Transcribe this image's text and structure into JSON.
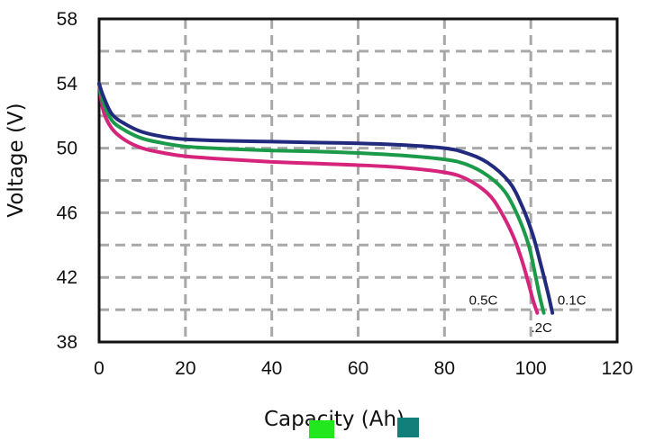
{
  "chart_data": {
    "type": "line",
    "title": "",
    "xlabel": "Capacity (Ah)",
    "ylabel": "Voltage (V)",
    "xlim": [
      0,
      120
    ],
    "ylim": [
      38,
      58
    ],
    "xticks": [
      "0",
      "20",
      "40",
      "60",
      "80",
      "100",
      "120"
    ],
    "yticks": [
      "38",
      "42",
      "46",
      "50",
      "54",
      "58"
    ],
    "grid": true,
    "legend": "none",
    "series": [
      {
        "name": "0.5C",
        "color": "#d6247d",
        "x": [
          0,
          1,
          3,
          6,
          10,
          15,
          20,
          30,
          40,
          50,
          60,
          70,
          80,
          85,
          90,
          93,
          96,
          98,
          99.5,
          100.5,
          101.5
        ],
        "y": [
          54,
          52.3,
          51.2,
          50.5,
          50.0,
          49.7,
          49.5,
          49.3,
          49.15,
          49.05,
          48.95,
          48.8,
          48.5,
          48.1,
          47.2,
          46.1,
          44.5,
          43.0,
          41.6,
          40.6,
          39.8
        ]
      },
      {
        "name": ".2C",
        "color": "#1b9a4a",
        "x": [
          0,
          1,
          3,
          6,
          10,
          15,
          20,
          30,
          40,
          50,
          60,
          70,
          80,
          85,
          90,
          94,
          97,
          99.5,
          101,
          102,
          103
        ],
        "y": [
          54,
          52.8,
          51.7,
          51.1,
          50.6,
          50.3,
          50.1,
          49.95,
          49.85,
          49.8,
          49.7,
          49.55,
          49.3,
          49.0,
          48.3,
          47.3,
          45.8,
          44.0,
          42.2,
          40.9,
          39.8
        ]
      },
      {
        "name": "0.1C",
        "color": "#222a7e",
        "x": [
          0,
          1,
          3,
          6,
          10,
          15,
          20,
          30,
          40,
          50,
          60,
          70,
          80,
          85,
          90,
          95,
          98,
          100.5,
          102.5,
          104,
          105
        ],
        "y": [
          54,
          53.2,
          52.1,
          51.5,
          51.0,
          50.7,
          50.55,
          50.45,
          50.4,
          50.35,
          50.3,
          50.2,
          50.0,
          49.7,
          49.1,
          47.9,
          46.4,
          44.6,
          42.6,
          41.0,
          39.8
        ]
      }
    ],
    "annotations": [
      {
        "text": "0.5C",
        "x": 89,
        "y": 40.6
      },
      {
        "text": ".2C",
        "x": 102.5,
        "y": 38.9
      },
      {
        "text": "0.1C",
        "x": 109.5,
        "y": 40.6
      }
    ],
    "swatches": [
      "#22e61e",
      "#137f7a"
    ]
  }
}
